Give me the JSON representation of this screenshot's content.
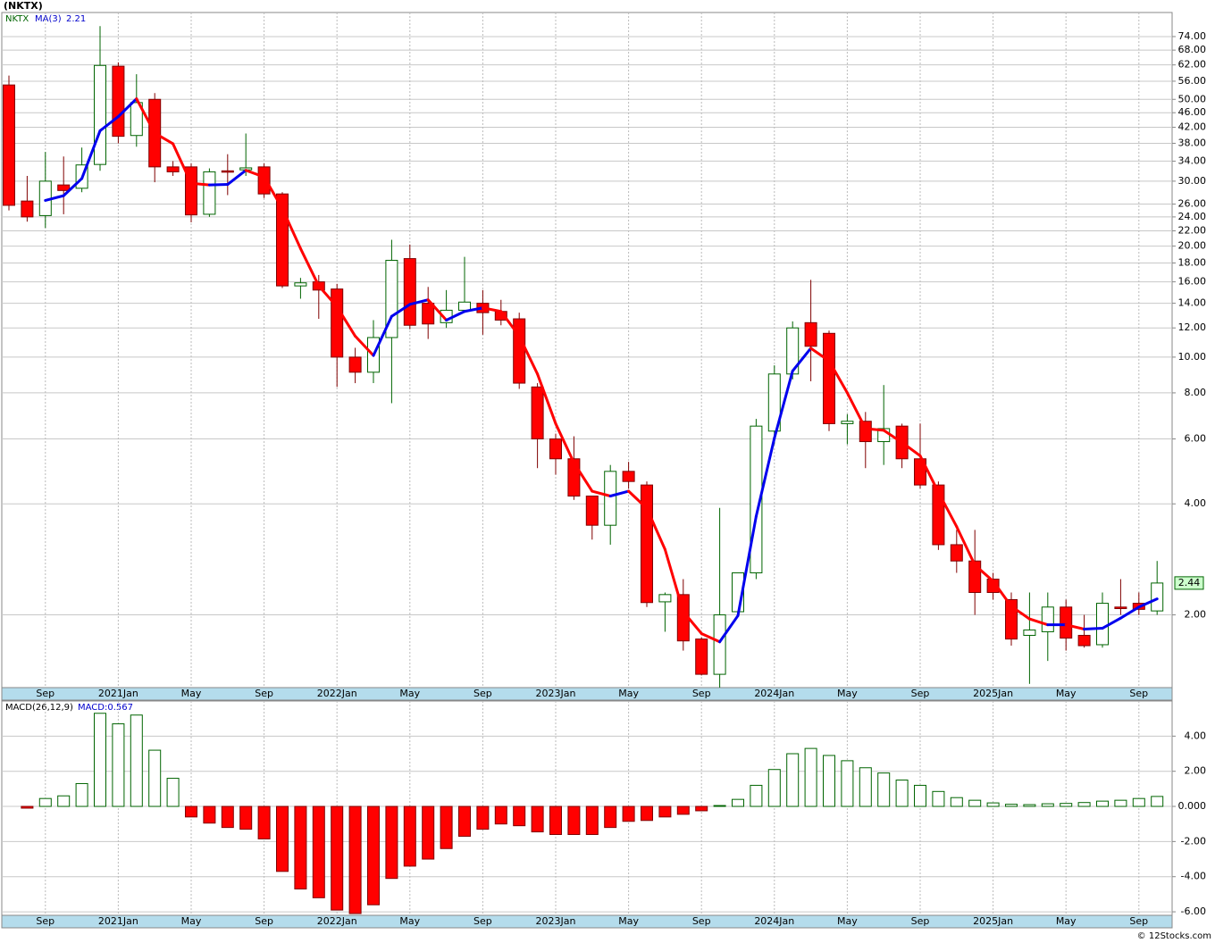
{
  "chart_data": [
    {
      "type": "candlestick",
      "title": "(NKTX)",
      "log": true,
      "grid": true,
      "categories": [
        null,
        null,
        "Sep",
        null,
        null,
        null,
        "2021Jan",
        null,
        null,
        null,
        "May",
        null,
        null,
        null,
        "Sep",
        null,
        null,
        null,
        "2022Jan",
        null,
        null,
        null,
        "May",
        null,
        null,
        null,
        "Sep",
        null,
        null,
        null,
        "2023Jan",
        null,
        null,
        null,
        "May",
        null,
        null,
        null,
        "Sep",
        null,
        null,
        null,
        "2024Jan",
        null,
        null,
        null,
        "May",
        null,
        null,
        null,
        "Sep",
        null,
        null,
        null,
        "2025Jan",
        null,
        null,
        null,
        "May",
        null,
        null,
        null,
        "Sep",
        null
      ],
      "ylim": [
        1.27,
        86
      ],
      "yticks": [
        {
          "value": 74,
          "label": "74.00"
        },
        {
          "value": 68,
          "label": "68.00"
        },
        {
          "value": 62,
          "label": "62.00"
        },
        {
          "value": 56,
          "label": "56.00"
        },
        {
          "value": 50,
          "label": "50.00"
        },
        {
          "value": 46,
          "label": "46.00"
        },
        {
          "value": 42,
          "label": "42.00"
        },
        {
          "value": 38,
          "label": "38.00"
        },
        {
          "value": 34,
          "label": "34.00"
        },
        {
          "value": 30,
          "label": "30.00"
        },
        {
          "value": 26,
          "label": "26.00"
        },
        {
          "value": 24,
          "label": "24.00"
        },
        {
          "value": 22,
          "label": "22.00"
        },
        {
          "value": 20,
          "label": "20.00"
        },
        {
          "value": 18,
          "label": "18.00"
        },
        {
          "value": 16,
          "label": "16.00"
        },
        {
          "value": 14,
          "label": "14.00"
        },
        {
          "value": 12,
          "label": "12.00"
        },
        {
          "value": 10,
          "label": "10.00"
        },
        {
          "value": 8,
          "label": "8.00"
        },
        {
          "value": 6,
          "label": "6.00"
        },
        {
          "value": 4,
          "label": "4.00"
        },
        {
          "value": 2,
          "label": "2.00"
        }
      ],
      "series": [
        {
          "name": "NKTX",
          "up_color": "#006400",
          "down_color": "#ff0000",
          "open": [
            54.7,
            26.5,
            24.2,
            29.3,
            28.7,
            33.3,
            61.5,
            39.9,
            50,
            32.8,
            32.8,
            24.4,
            32,
            32.2,
            32.8,
            27.7,
            15.6,
            16,
            15.3,
            10,
            9.1,
            11.3,
            18.5,
            14,
            12.4,
            13.4,
            14,
            13.3,
            12.7,
            8.3,
            6,
            5.3,
            4.2,
            3.5,
            4.9,
            4.5,
            2.17,
            2.27,
            1.72,
            1.38,
            2.04,
            2.6,
            6.3,
            9,
            12.4,
            11.6,
            6.6,
            6.7,
            5.9,
            6.5,
            5.3,
            4.5,
            3.1,
            2.8,
            2.5,
            2.2,
            1.76,
            1.8,
            2.1,
            1.76,
            1.66,
            2.1,
            2.15,
            2.05
          ],
          "high": [
            58,
            31,
            36,
            35,
            37,
            79,
            63,
            58.5,
            52,
            34,
            33.5,
            32.5,
            35.5,
            40.4,
            33.5,
            28,
            16.4,
            16.7,
            15.8,
            10.6,
            12.6,
            20.8,
            20.2,
            15.5,
            15.2,
            18.7,
            15.2,
            14.3,
            13.2,
            8.5,
            6.2,
            6.1,
            4.2,
            5.1,
            5.2,
            4.6,
            2.3,
            2.5,
            1.74,
            3.9,
            2.6,
            6.8,
            9.5,
            12.5,
            16.2,
            11.8,
            7,
            7.1,
            8.4,
            6.6,
            6.6,
            4.6,
            3.4,
            3.4,
            2.6,
            2.3,
            2.3,
            2.3,
            2.2,
            2.0,
            2.3,
            2.5,
            2.3,
            2.8
          ],
          "low": [
            25,
            23.3,
            22.4,
            24.4,
            28,
            32,
            38,
            37.2,
            29.8,
            31,
            23.2,
            24,
            27.5,
            31,
            27,
            15.4,
            14.4,
            12.7,
            8.3,
            8.5,
            8.5,
            7.5,
            11.9,
            11.2,
            12,
            13.4,
            11.5,
            12.2,
            8.2,
            5,
            4.8,
            4.1,
            3.2,
            3.1,
            4.4,
            2.1,
            1.8,
            1.6,
            1.37,
            1.27,
            2.0,
            2.5,
            5.8,
            8.7,
            8.6,
            6.3,
            5.8,
            5.0,
            5.1,
            5.0,
            4.4,
            3.0,
            2.6,
            2.0,
            2.2,
            1.65,
            1.3,
            1.5,
            1.6,
            1.63,
            1.63,
            2.0,
            2.0,
            2.0
          ],
          "close": [
            25.8,
            24,
            30,
            28.3,
            33.2,
            61.8,
            39.7,
            49,
            32.8,
            31.8,
            24.3,
            31.8,
            31.9,
            32.6,
            27.7,
            15.6,
            15.9,
            15.2,
            10,
            9.1,
            11.3,
            18.3,
            12.2,
            12.3,
            13.4,
            14.1,
            13.2,
            12.6,
            8.5,
            6,
            5.3,
            4.2,
            3.5,
            4.9,
            4.6,
            2.16,
            2.27,
            1.7,
            1.38,
            2.0,
            2.6,
            6.5,
            9,
            12,
            10.7,
            6.6,
            6.7,
            5.9,
            6.4,
            5.3,
            4.5,
            3.1,
            2.8,
            2.3,
            2.3,
            1.72,
            1.82,
            2.1,
            1.73,
            1.65,
            2.15,
            2.08,
            2.07,
            2.44
          ]
        },
        {
          "name": "MA(3)",
          "up_color": "#0000ee",
          "down_color": "#ff0000",
          "values": [
            null,
            null,
            26.6,
            27.4,
            30.5,
            41.1,
            44.9,
            50.2,
            40.5,
            37.9,
            29.6,
            29.3,
            29.4,
            32.1,
            30.8,
            25.3,
            19.7,
            15.6,
            13.7,
            11.4,
            10.1,
            12.9,
            13.9,
            14.3,
            12.6,
            13.3,
            13.6,
            13.3,
            11.4,
            9.0,
            6.6,
            5.17,
            4.33,
            4.2,
            4.33,
            3.89,
            3.01,
            2.04,
            1.78,
            1.69,
            1.99,
            3.7,
            6.03,
            9.17,
            10.57,
            9.77,
            8,
            6.4,
            6.33,
            5.87,
            5.4,
            4.3,
            3.47,
            2.73,
            2.47,
            2.11,
            1.95,
            1.88,
            1.88,
            1.83,
            1.84,
            1.96,
            2.1,
            2.21
          ]
        }
      ]
    },
    {
      "type": "bar",
      "legend_title": "MACD(26,12,9)",
      "grid": true,
      "ylim": [
        -6.2,
        6
      ],
      "yticks": [
        {
          "value": 4,
          "label": "4.00"
        },
        {
          "value": 2,
          "label": "2.00"
        },
        {
          "value": 0,
          "label": "0.000"
        },
        {
          "value": -2,
          "label": "-2.00"
        },
        {
          "value": -4,
          "label": "-4.00"
        },
        {
          "value": -6,
          "label": "-6.00"
        }
      ],
      "series": [
        {
          "name": "MACD:0.567",
          "up_color": "#006400",
          "down_color": "#ff0000",
          "values": [
            null,
            -0.1,
            0.45,
            0.6,
            1.3,
            5.3,
            4.7,
            5.2,
            3.2,
            1.6,
            -0.6,
            -0.95,
            -1.2,
            -1.3,
            -1.85,
            -3.7,
            -4.7,
            -5.2,
            -5.9,
            -6.1,
            -5.6,
            -4.1,
            -3.4,
            -3.0,
            -2.4,
            -1.7,
            -1.3,
            -1.0,
            -1.1,
            -1.45,
            -1.6,
            -1.6,
            -1.6,
            -1.2,
            -0.85,
            -0.8,
            -0.6,
            -0.45,
            -0.25,
            0.05,
            0.4,
            1.2,
            2.1,
            3.0,
            3.3,
            2.9,
            2.6,
            2.2,
            1.9,
            1.5,
            1.2,
            0.85,
            0.5,
            0.35,
            0.2,
            0.12,
            0.1,
            0.15,
            0.17,
            0.22,
            0.3,
            0.35,
            0.45,
            0.567
          ]
        }
      ]
    }
  ],
  "credit": "© 12Stocks.com"
}
